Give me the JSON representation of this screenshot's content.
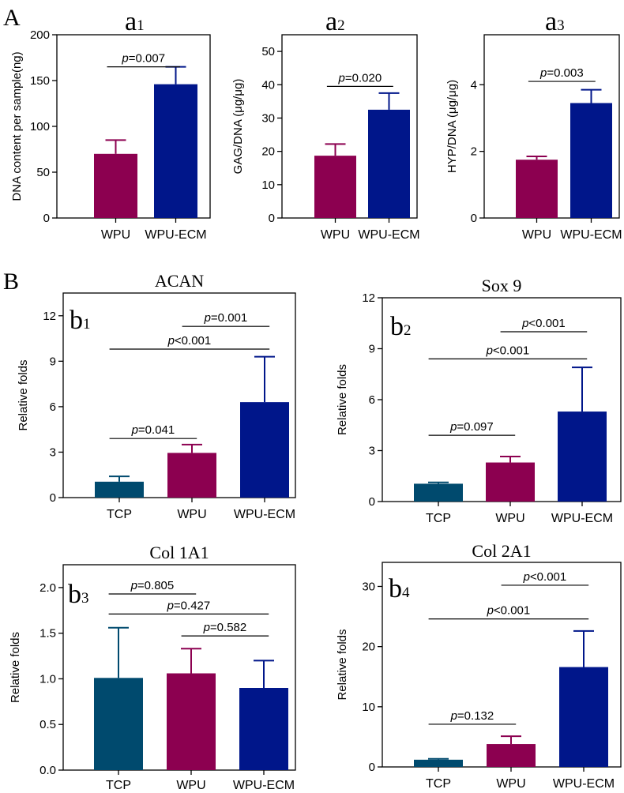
{
  "sections": [
    "A",
    "B"
  ],
  "colors": {
    "TCP": "#004A6E",
    "WPU": "#8C0050",
    "WPU-ECM": "#00168A",
    "axis": "#000000"
  },
  "chart_data": [
    {
      "id": "a1",
      "type": "bar",
      "label": {
        "letter": "a",
        "num": "1"
      },
      "title": "",
      "ylabel": "DNA content per sample(ng)",
      "ylim": [
        0,
        200
      ],
      "yticks": [
        0,
        50,
        100,
        150,
        200
      ],
      "tick_labels": [
        "0",
        "50",
        "100",
        "150",
        "200"
      ],
      "categories": [
        "WPU",
        "WPU-ECM"
      ],
      "values": [
        70,
        146
      ],
      "errors": [
        15,
        19
      ],
      "comparisons": [
        {
          "from": 0,
          "to": 1,
          "label": "=0.007",
          "level": 165
        }
      ]
    },
    {
      "id": "a2",
      "type": "bar",
      "label": {
        "letter": "a",
        "num": "2"
      },
      "title": "",
      "ylabel": "GAG/DNA (μg/μg)",
      "ylim": [
        0,
        55
      ],
      "yticks": [
        0,
        10,
        20,
        30,
        40,
        50
      ],
      "tick_labels": [
        "0",
        "10",
        "20",
        "30",
        "40",
        "50"
      ],
      "categories": [
        "WPU",
        "WPU-ECM"
      ],
      "values": [
        18.7,
        32.5
      ],
      "errors": [
        3.5,
        5
      ],
      "comparisons": [
        {
          "from": 0,
          "to": 1,
          "label": "=0.020",
          "level": 39.5
        }
      ]
    },
    {
      "id": "a3",
      "type": "bar",
      "label": {
        "letter": "a",
        "num": "3"
      },
      "title": "",
      "ylabel": "HYP/DNA (μg/μg)",
      "ylim": [
        0,
        5.5
      ],
      "yticks": [
        0,
        2,
        4
      ],
      "tick_labels": [
        "0",
        "2",
        "4"
      ],
      "categories": [
        "WPU",
        "WPU-ECM"
      ],
      "values": [
        1.75,
        3.45
      ],
      "errors": [
        0.1,
        0.4
      ],
      "comparisons": [
        {
          "from": 0,
          "to": 1,
          "label": "=0.003",
          "level": 4.1
        }
      ]
    },
    {
      "id": "b1",
      "type": "bar",
      "label": {
        "letter": "b",
        "num": "1"
      },
      "title": "ACAN",
      "ylabel": "Relative folds",
      "ylim": [
        0,
        13.5
      ],
      "yticks": [
        0,
        3,
        6,
        9,
        12
      ],
      "tick_labels": [
        "0",
        "3",
        "6",
        "9",
        "12"
      ],
      "categories": [
        "TCP",
        "WPU",
        "WPU-ECM"
      ],
      "values": [
        1.05,
        2.95,
        6.3
      ],
      "errors": [
        0.35,
        0.55,
        3.0
      ],
      "comparisons": [
        {
          "from": 0,
          "to": 1,
          "label": "=0.041",
          "level": 3.9
        },
        {
          "from": 0,
          "to": 2,
          "label": "<0.001",
          "level": 9.8
        },
        {
          "from": 1,
          "to": 2,
          "label": "=0.001",
          "level": 11.3
        }
      ]
    },
    {
      "id": "b2",
      "type": "bar",
      "label": {
        "letter": "b",
        "num": "2"
      },
      "title": "Sox 9",
      "ylabel": "Relative folds",
      "ylim": [
        0,
        12
      ],
      "yticks": [
        0,
        3,
        6,
        9,
        12
      ],
      "tick_labels": [
        "0",
        "3",
        "6",
        "9",
        "12"
      ],
      "categories": [
        "TCP",
        "WPU",
        "WPU-ECM"
      ],
      "values": [
        1.05,
        2.3,
        5.3
      ],
      "errors": [
        0.08,
        0.35,
        2.6
      ],
      "comparisons": [
        {
          "from": 0,
          "to": 1,
          "label": "=0.097",
          "level": 3.9
        },
        {
          "from": 0,
          "to": 2,
          "label": "<0.001",
          "level": 8.4
        },
        {
          "from": 1,
          "to": 2,
          "label": "<0.001",
          "level": 10.0
        }
      ]
    },
    {
      "id": "b3",
      "type": "bar",
      "label": {
        "letter": "b",
        "num": "3"
      },
      "title": "Col 1A1",
      "ylabel": "Relative folds",
      "ylim": [
        0,
        2.25
      ],
      "yticks": [
        0.0,
        0.5,
        1.0,
        1.5,
        2.0
      ],
      "tick_labels": [
        "0.0",
        "0.5",
        "1.0",
        "1.5",
        "2.0"
      ],
      "categories": [
        "TCP",
        "WPU",
        "WPU-ECM"
      ],
      "values": [
        1.01,
        1.06,
        0.9
      ],
      "errors": [
        0.55,
        0.27,
        0.3
      ],
      "comparisons": [
        {
          "from": 0,
          "to": 1,
          "label": "=0.805",
          "level": 1.93
        },
        {
          "from": 0,
          "to": 2,
          "label": "=0.427",
          "level": 1.71
        },
        {
          "from": 1,
          "to": 2,
          "label": "=0.582",
          "level": 1.47
        }
      ]
    },
    {
      "id": "b4",
      "type": "bar",
      "label": {
        "letter": "b",
        "num": "4"
      },
      "title": "Col 2A1",
      "ylabel": "Relative folds",
      "ylim": [
        0,
        34
      ],
      "yticks": [
        0,
        10,
        20,
        30
      ],
      "tick_labels": [
        "0",
        "10",
        "20",
        "30"
      ],
      "categories": [
        "TCP",
        "WPU",
        "WPU-ECM"
      ],
      "values": [
        1.2,
        3.8,
        16.6
      ],
      "errors": [
        0.15,
        1.3,
        6.0
      ],
      "comparisons": [
        {
          "from": 0,
          "to": 1,
          "label": "=0.132",
          "level": 7.1
        },
        {
          "from": 0,
          "to": 2,
          "label": "<0.001",
          "level": 24.6
        },
        {
          "from": 1,
          "to": 2,
          "label": "<0.001",
          "level": 30.2
        }
      ]
    }
  ]
}
